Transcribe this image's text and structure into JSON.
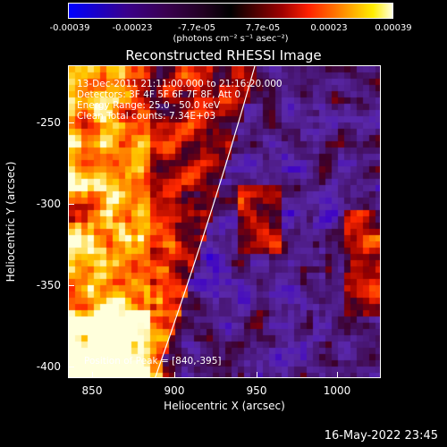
{
  "colorbar": {
    "ticks": [
      "-0.00039",
      "-0.00023",
      "-7.7e-05",
      "7.7e-05",
      "0.00023",
      "0.00039"
    ],
    "unit_label": "(photons cm⁻² s⁻¹ asec⁻²)",
    "colors": [
      "#0000ff",
      "#3a008a",
      "#000000",
      "#a00000",
      "#ff7000",
      "#ffee00",
      "#ffffe0"
    ]
  },
  "title": "Reconstructed RHESSI Image",
  "annotations": {
    "time_range": "13-Dec-2011 21:11:00.000 to 21:16:20.000",
    "detectors": "Detectors: 3F 4F 5F 6F 7F 8F, Att 0",
    "energy": "Energy Range: 25.0 - 50.0 keV",
    "method": "Clean     Total counts: 7.34E+03",
    "peak": "Position of Peak = [840,-395]"
  },
  "axes": {
    "xlabel": "Heliocentric X (arcsec)",
    "ylabel": "Heliocentric Y (arcsec)",
    "xticks": [
      "850",
      "900",
      "950",
      "1000"
    ],
    "yticks": [
      "-250",
      "-300",
      "-350",
      "-400"
    ],
    "xrange": [
      835,
      1025
    ],
    "yrange": [
      -405,
      -215
    ]
  },
  "footer": {
    "timestamp": "16-May-2022 23:45"
  }
}
